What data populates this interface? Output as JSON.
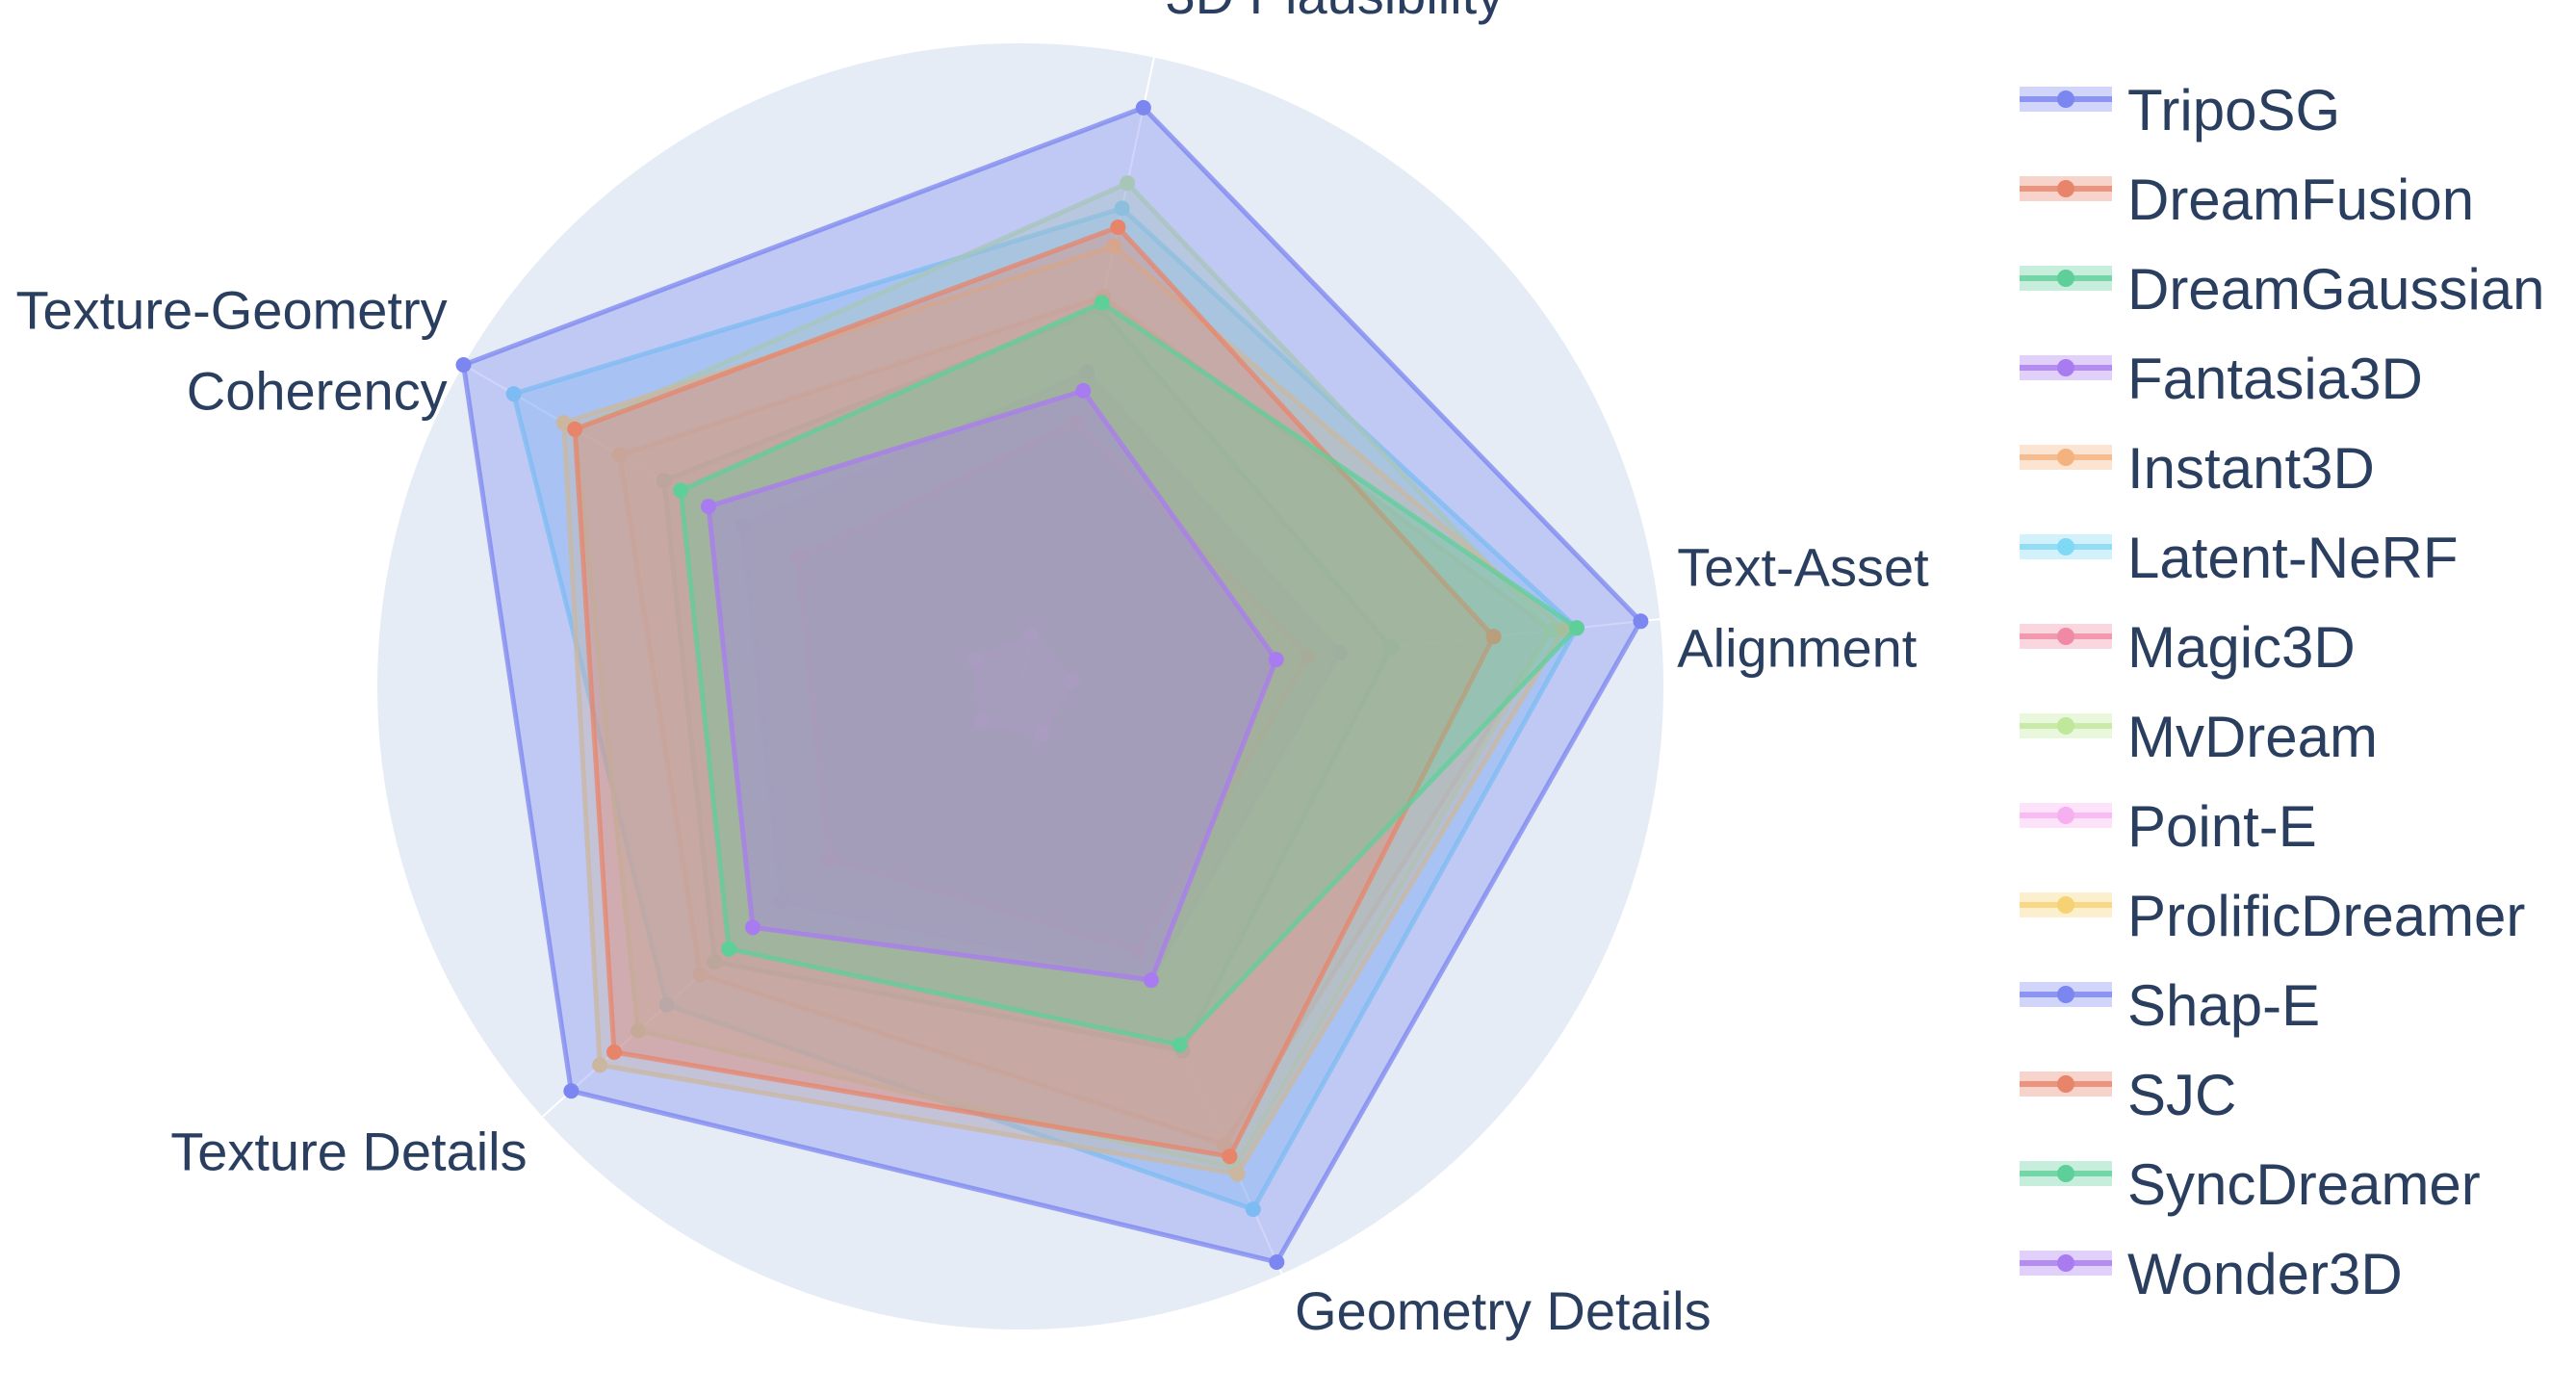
{
  "chart_data": {
    "type": "radar",
    "axes": [
      "Text-Asset Alignment",
      "3D Plausibility",
      "Texture-Geometry Coherency",
      "Texture Details",
      "Geometry Details"
    ],
    "axis_label_lines": [
      [
        "Text-Asset",
        "Alignment"
      ],
      [
        "3D Plausibility"
      ],
      [
        "Texture-Geometry",
        "Coherency"
      ],
      [
        "Texture Details"
      ],
      [
        "Geometry Details"
      ]
    ],
    "range": [
      0,
      1
    ],
    "grid": true,
    "legend_position": "right",
    "series": [
      {
        "name": "TripoSG",
        "color": "#7b86f0",
        "values": [
          0.22,
          0.2,
          0.16,
          0.16,
          0.17
        ]
      },
      {
        "name": "DreamFusion",
        "color": "#e8846a",
        "values": [
          0.45,
          0.45,
          0.45,
          0.45,
          0.45
        ]
      },
      {
        "name": "DreamGaussian",
        "color": "#5fcf9a",
        "values": [
          0.58,
          0.6,
          0.64,
          0.64,
          0.62
        ]
      },
      {
        "name": "Fantasia3D",
        "color": "#a97bf0",
        "values": [
          0.5,
          0.5,
          0.5,
          0.5,
          0.5
        ]
      },
      {
        "name": "Instant3D",
        "color": "#f4b27f",
        "values": [
          0.83,
          0.62,
          0.72,
          0.67,
          0.78
        ]
      },
      {
        "name": "Latent-NeRF",
        "color": "#7fd8f4",
        "values": [
          0.87,
          0.76,
          0.91,
          0.74,
          0.89
        ]
      },
      {
        "name": "Magic3D",
        "color": "#f08aa4",
        "values": [
          0.45,
          0.42,
          0.4,
          0.4,
          0.45
        ]
      },
      {
        "name": "MvDream",
        "color": "#bfe89a",
        "values": [
          0.83,
          0.8,
          0.8,
          0.8,
          0.82
        ]
      },
      {
        "name": "Point-E",
        "color": "#f6b0f0",
        "values": [
          0.08,
          0.08,
          0.08,
          0.08,
          0.08
        ]
      },
      {
        "name": "ProlificDreamer",
        "color": "#f6d273",
        "values": [
          0.85,
          0.7,
          0.82,
          0.88,
          0.83
        ]
      },
      {
        "name": "Shap-E",
        "color": "#7b86f0",
        "values": [
          0.97,
          0.92,
          1.0,
          0.94,
          0.98
        ]
      },
      {
        "name": "SJC",
        "color": "#e8846a",
        "values": [
          0.74,
          0.73,
          0.8,
          0.85,
          0.8
        ]
      },
      {
        "name": "SyncDreamer",
        "color": "#5fcf9a",
        "values": [
          0.87,
          0.61,
          0.61,
          0.61,
          0.61
        ]
      },
      {
        "name": "Wonder3D",
        "color": "#a97bf0",
        "values": [
          0.4,
          0.47,
          0.56,
          0.56,
          0.5
        ]
      }
    ]
  }
}
